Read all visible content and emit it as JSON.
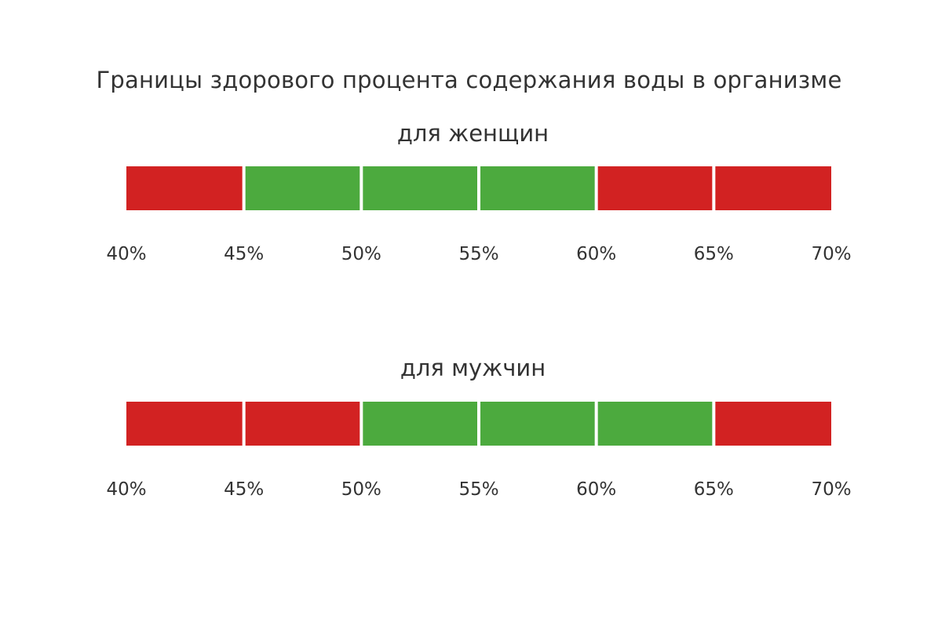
{
  "title": "Границы здорового процента содержания воды в организме",
  "colors": {
    "normal": "#4caa3e",
    "abnormal": "#d22222"
  },
  "chart_data": [
    {
      "type": "bar",
      "subtitle": "для женщин",
      "ticks": [
        "40%",
        "45%",
        "50%",
        "55%",
        "60%",
        "65%",
        "70%"
      ],
      "segments": [
        {
          "from": 40,
          "to": 45,
          "status": "abnormal"
        },
        {
          "from": 45,
          "to": 50,
          "status": "normal"
        },
        {
          "from": 50,
          "to": 55,
          "status": "normal"
        },
        {
          "from": 55,
          "to": 60,
          "status": "normal"
        },
        {
          "from": 60,
          "to": 65,
          "status": "abnormal"
        },
        {
          "from": 65,
          "to": 70,
          "status": "abnormal"
        }
      ],
      "xlim": [
        40,
        70
      ],
      "healthy_range": [
        45,
        60
      ]
    },
    {
      "type": "bar",
      "subtitle": "для мужчин",
      "ticks": [
        "40%",
        "45%",
        "50%",
        "55%",
        "60%",
        "65%",
        "70%"
      ],
      "segments": [
        {
          "from": 40,
          "to": 45,
          "status": "abnormal"
        },
        {
          "from": 45,
          "to": 50,
          "status": "abnormal"
        },
        {
          "from": 50,
          "to": 55,
          "status": "normal"
        },
        {
          "from": 55,
          "to": 60,
          "status": "normal"
        },
        {
          "from": 60,
          "to": 65,
          "status": "normal"
        },
        {
          "from": 65,
          "to": 70,
          "status": "abnormal"
        }
      ],
      "xlim": [
        40,
        70
      ],
      "healthy_range": [
        50,
        65
      ]
    }
  ]
}
